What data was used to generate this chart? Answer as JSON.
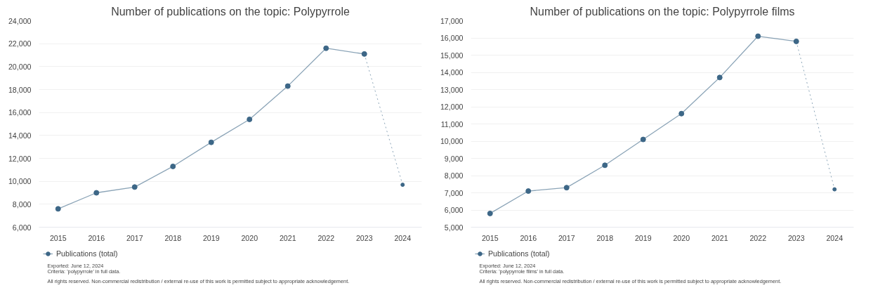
{
  "chart_data": [
    {
      "type": "line",
      "title": "Number of publications on the topic: Polypyrrole",
      "categories": [
        "2015",
        "2016",
        "2017",
        "2018",
        "2019",
        "2020",
        "2021",
        "2022",
        "2023",
        "2024"
      ],
      "series": [
        {
          "name": "Publications (total)",
          "color": "#3d6787",
          "values": [
            7600,
            9000,
            9500,
            11300,
            13400,
            15400,
            18300,
            21600,
            21100,
            null
          ]
        },
        {
          "color": "#3d6787",
          "line_style": "dotted",
          "values": [
            null,
            null,
            null,
            null,
            null,
            null,
            null,
            null,
            21100,
            9700
          ]
        }
      ],
      "ylim": [
        6000,
        24000
      ],
      "yticks": [
        {
          "value": 6000,
          "label": "6,000"
        },
        {
          "value": 8000,
          "label": "8,000"
        },
        {
          "value": 10000,
          "label": "10,000"
        },
        {
          "value": 12000,
          "label": "12,000"
        },
        {
          "value": 14000,
          "label": "14,000"
        },
        {
          "value": 16000,
          "label": "16,000"
        },
        {
          "value": 18000,
          "label": "18,000"
        },
        {
          "value": 20000,
          "label": "20,000"
        },
        {
          "value": 22000,
          "label": "22,000"
        },
        {
          "value": 24000,
          "label": "24,000"
        }
      ],
      "grid": "y",
      "legend": "bottom left",
      "marker": "circle",
      "line_style": "solid",
      "annotations": [
        "Exported: June 12, 2024",
        "Criteria: 'polypyrrole' in full data.",
        "All rights reserved. Non-commercial redistribution / external re-use of this work is permitted subject to appropriate acknowledgement."
      ]
    },
    {
      "type": "line",
      "title": "Number of publications on the topic: Polypyrrole films",
      "categories": [
        "2015",
        "2016",
        "2017",
        "2018",
        "2019",
        "2020",
        "2021",
        "2022",
        "2023",
        "2024"
      ],
      "series": [
        {
          "name": "Publications (total)",
          "color": "#3d6787",
          "values": [
            5800,
            7100,
            7300,
            8600,
            10100,
            11600,
            13700,
            16100,
            15800,
            null
          ]
        },
        {
          "color": "#3d6787",
          "line_style": "dotted",
          "values": [
            null,
            null,
            null,
            null,
            null,
            null,
            null,
            null,
            15800,
            7200
          ]
        }
      ],
      "ylim": [
        5000,
        17000
      ],
      "yticks": [
        {
          "value": 5000,
          "label": "5,000"
        },
        {
          "value": 6000,
          "label": "6,000"
        },
        {
          "value": 7000,
          "label": "7,000"
        },
        {
          "value": 8000,
          "label": "8,000"
        },
        {
          "value": 9000,
          "label": "9,000"
        },
        {
          "value": 10000,
          "label": "10,000"
        },
        {
          "value": 11000,
          "label": "11,000"
        },
        {
          "value": 12000,
          "label": "12,000"
        },
        {
          "value": 13000,
          "label": "13,000"
        },
        {
          "value": 14000,
          "label": "14,000"
        },
        {
          "value": 15000,
          "label": "15,000"
        },
        {
          "value": 16000,
          "label": "16,000"
        },
        {
          "value": 17000,
          "label": "17,000"
        }
      ],
      "grid": "y",
      "legend": "bottom left",
      "marker": "circle",
      "line_style": "solid",
      "annotations": [
        "Exported: June 12, 2024",
        "Criteria: 'polypyrrole films' in full data.",
        "All rights reserved. Non-commercial redistribution / external re-use of this work is permitted subject to appropriate acknowledgement."
      ]
    }
  ]
}
